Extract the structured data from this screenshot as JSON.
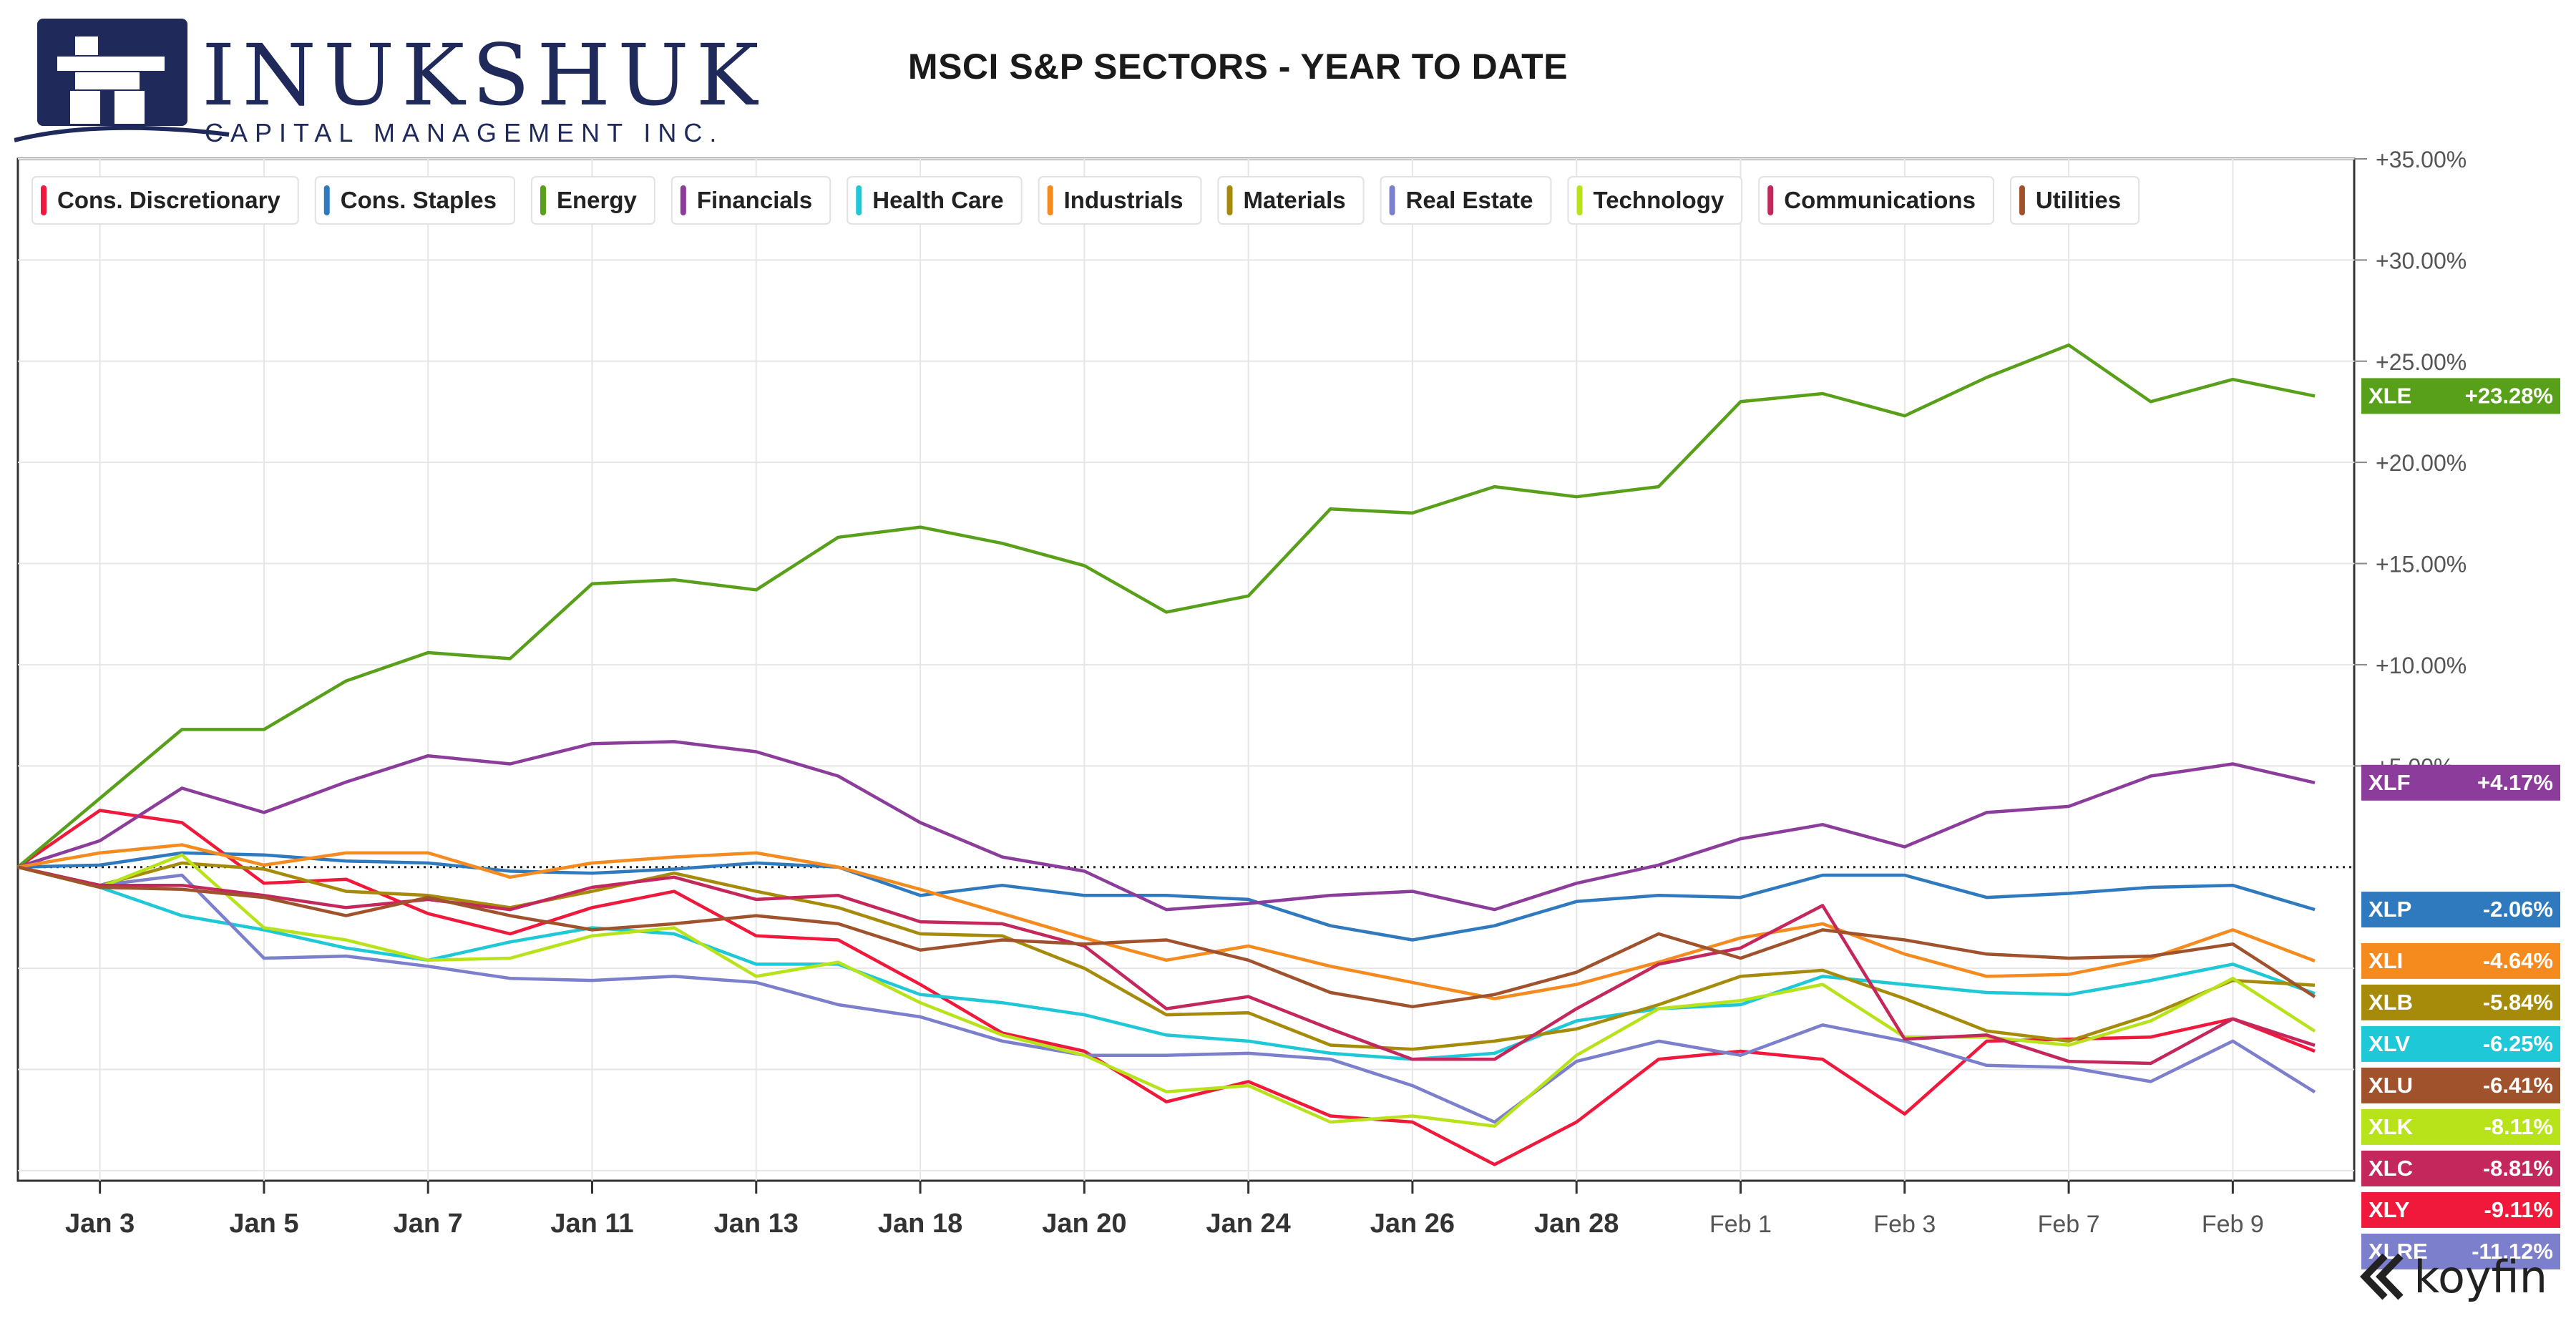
{
  "header": {
    "brand_name": "INUKSHUK",
    "brand_sub": "CAPITAL MANAGEMENT INC.",
    "title": "MSCI S&P SECTORS - YEAR TO DATE"
  },
  "footer": {
    "brand": "koyfin"
  },
  "colors": {
    "brand_navy": "#1f2a5a",
    "grid": "#e6e6e6",
    "axis_text": "#555555"
  },
  "chart_data": {
    "type": "line",
    "title": "MSCI S&P SECTORS - YEAR TO DATE",
    "x_tick_labels": [
      "Jan 3",
      "Jan 5",
      "Jan 7",
      "Jan 11",
      "Jan 13",
      "Jan 18",
      "Jan 20",
      "Jan 24",
      "Jan 26",
      "Jan 28",
      "Feb 1",
      "Feb 3",
      "Feb 7",
      "Feb 9"
    ],
    "x": [
      "Dec 31",
      "Jan 3",
      "Jan 4",
      "Jan 5",
      "Jan 6",
      "Jan 7",
      "Jan 10",
      "Jan 11",
      "Jan 12",
      "Jan 13",
      "Jan 14",
      "Jan 18",
      "Jan 19",
      "Jan 20",
      "Jan 21",
      "Jan 24",
      "Jan 25",
      "Jan 26",
      "Jan 27",
      "Jan 28",
      "Jan 31",
      "Feb 1",
      "Feb 2",
      "Feb 3",
      "Feb 4",
      "Feb 7",
      "Feb 8",
      "Feb 9",
      "Feb 10"
    ],
    "y_ticks": [
      "+35.00%",
      "+30.00%",
      "+25.00%",
      "+20.00%",
      "+15.00%",
      "+10.00%",
      "+5.00%"
    ],
    "ylim": [
      -15.5,
      35
    ],
    "zero_line": "dotted",
    "grid": true,
    "legend_position": "top-left",
    "series": [
      {
        "name": "Cons. Discretionary",
        "ticker": "XLY",
        "end_label": "-9.11%",
        "color": "#f0193c",
        "values": [
          0,
          2.8,
          2.2,
          -0.8,
          -0.6,
          -2.3,
          -3.3,
          -2.0,
          -1.2,
          -3.4,
          -3.6,
          -5.8,
          -8.2,
          -9.1,
          -11.6,
          -10.6,
          -12.3,
          -12.6,
          -14.7,
          -12.6,
          -9.5,
          -9.1,
          -9.5,
          -12.2,
          -8.6,
          -8.5,
          -8.4,
          -7.5,
          -9.1
        ]
      },
      {
        "name": "Cons. Staples",
        "ticker": "XLP",
        "end_label": "-2.06%",
        "color": "#2f7abf",
        "values": [
          0,
          0.1,
          0.7,
          0.6,
          0.3,
          0.2,
          -0.2,
          -0.3,
          -0.1,
          0.2,
          0.0,
          -1.4,
          -0.9,
          -1.4,
          -1.4,
          -1.6,
          -2.9,
          -3.6,
          -2.9,
          -1.7,
          -1.4,
          -1.5,
          -0.4,
          -0.4,
          -1.5,
          -1.3,
          -1.0,
          -0.9,
          -2.1
        ]
      },
      {
        "name": "Energy",
        "ticker": "XLE",
        "end_label": "+23.28%",
        "color": "#58a019",
        "values": [
          0,
          3.4,
          6.8,
          6.8,
          9.2,
          10.6,
          10.3,
          14.0,
          14.2,
          13.7,
          16.3,
          16.8,
          16.0,
          14.9,
          12.6,
          13.4,
          17.7,
          17.5,
          18.8,
          18.3,
          18.8,
          23.0,
          23.4,
          22.3,
          24.2,
          25.8,
          23.0,
          24.1,
          23.28
        ]
      },
      {
        "name": "Financials",
        "ticker": "XLF",
        "end_label": "+4.17%",
        "color": "#8c3d9b",
        "values": [
          0,
          1.3,
          3.9,
          2.7,
          4.2,
          5.5,
          5.1,
          6.1,
          6.2,
          5.7,
          4.5,
          2.2,
          0.5,
          -0.2,
          -2.1,
          -1.8,
          -1.4,
          -1.2,
          -2.1,
          -0.8,
          0.1,
          1.4,
          2.1,
          1.0,
          2.7,
          3.0,
          4.5,
          5.1,
          4.17
        ]
      },
      {
        "name": "Health Care",
        "ticker": "XLV",
        "end_label": "-6.25%",
        "color": "#1ec8d6",
        "values": [
          0,
          -1.0,
          -2.4,
          -3.1,
          -4.0,
          -4.6,
          -3.7,
          -3.0,
          -3.3,
          -4.8,
          -4.8,
          -6.3,
          -6.7,
          -7.3,
          -8.3,
          -8.6,
          -9.2,
          -9.5,
          -9.2,
          -7.6,
          -7.0,
          -6.8,
          -5.4,
          -5.8,
          -6.2,
          -6.3,
          -5.6,
          -4.8,
          -6.25
        ]
      },
      {
        "name": "Industrials",
        "ticker": "XLI",
        "end_label": "-4.64%",
        "color": "#f58a1f",
        "values": [
          0,
          0.7,
          1.1,
          0.1,
          0.7,
          0.7,
          -0.5,
          0.2,
          0.5,
          0.7,
          0.0,
          -1.1,
          -2.3,
          -3.5,
          -4.6,
          -3.9,
          -4.9,
          -5.7,
          -6.5,
          -5.8,
          -4.7,
          -3.5,
          -2.8,
          -4.3,
          -5.4,
          -5.3,
          -4.5,
          -3.1,
          -4.64
        ]
      },
      {
        "name": "Materials",
        "ticker": "XLB",
        "end_label": "-5.84%",
        "color": "#a68b0b",
        "values": [
          0,
          -0.9,
          0.2,
          -0.1,
          -1.2,
          -1.4,
          -2.0,
          -1.2,
          -0.3,
          -1.2,
          -2.0,
          -3.3,
          -3.4,
          -5.0,
          -7.3,
          -7.2,
          -8.8,
          -9.0,
          -8.6,
          -8.0,
          -6.8,
          -5.4,
          -5.1,
          -6.5,
          -8.1,
          -8.6,
          -7.3,
          -5.6,
          -5.84
        ]
      },
      {
        "name": "Real Estate",
        "ticker": "XLRE",
        "end_label": "-11.12%",
        "color": "#7b7fcc",
        "values": [
          0,
          -0.9,
          -0.4,
          -4.5,
          -4.4,
          -4.9,
          -5.5,
          -5.6,
          -5.4,
          -5.7,
          -6.8,
          -7.4,
          -8.6,
          -9.3,
          -9.3,
          -9.2,
          -9.5,
          -10.8,
          -12.6,
          -9.6,
          -8.6,
          -9.3,
          -7.8,
          -8.6,
          -9.8,
          -9.9,
          -10.6,
          -8.6,
          -11.12
        ]
      },
      {
        "name": "Technology",
        "ticker": "XLK",
        "end_label": "-8.11%",
        "color": "#b8e31a",
        "values": [
          0,
          -1.0,
          0.6,
          -3.0,
          -3.6,
          -4.6,
          -4.5,
          -3.4,
          -3.0,
          -5.4,
          -4.7,
          -6.7,
          -8.3,
          -9.3,
          -11.1,
          -10.8,
          -12.6,
          -12.3,
          -12.8,
          -9.3,
          -7.0,
          -6.6,
          -5.8,
          -8.4,
          -8.4,
          -8.8,
          -7.6,
          -5.5,
          -8.11
        ]
      },
      {
        "name": "Communications",
        "ticker": "XLC",
        "end_label": "-8.81%",
        "color": "#c4275b",
        "values": [
          0,
          -0.9,
          -0.9,
          -1.4,
          -2.0,
          -1.6,
          -2.1,
          -1.0,
          -0.5,
          -1.6,
          -1.4,
          -2.7,
          -2.8,
          -3.9,
          -7.0,
          -6.4,
          -8.0,
          -9.5,
          -9.5,
          -7.0,
          -4.8,
          -4.0,
          -1.9,
          -8.5,
          -8.3,
          -9.6,
          -9.7,
          -7.5,
          -8.81
        ]
      },
      {
        "name": "Utilities",
        "ticker": "XLU",
        "end_label": "-6.41%",
        "color": "#a0522d",
        "values": [
          0,
          -1.0,
          -1.1,
          -1.5,
          -2.4,
          -1.5,
          -2.4,
          -3.1,
          -2.8,
          -2.4,
          -2.8,
          -4.1,
          -3.6,
          -3.8,
          -3.6,
          -4.6,
          -6.2,
          -6.9,
          -6.3,
          -5.2,
          -3.3,
          -4.5,
          -3.1,
          -3.6,
          -4.3,
          -4.5,
          -4.4,
          -3.8,
          -6.41
        ]
      }
    ]
  }
}
